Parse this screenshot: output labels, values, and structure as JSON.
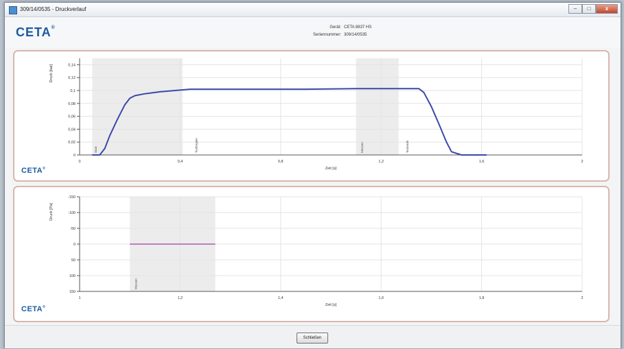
{
  "window": {
    "title": "309/14/0535 - Druckverlauf",
    "buttons": [
      "–",
      "□",
      "x"
    ]
  },
  "header": {
    "logo": "CETA",
    "logo_mark": "®",
    "device_label": "Gerät:",
    "device_value": "CETA 8837 HS",
    "serial_label": "Seriennummer:",
    "serial_value": "309/14/0535"
  },
  "footer": {
    "close_label": "Schließen"
  },
  "chart_data": [
    {
      "type": "line",
      "title": "",
      "ylabel": "Druck [bar]",
      "xlabel": "Zeit [s]",
      "xlim": [
        0,
        2
      ],
      "ylim": [
        0,
        0.15
      ],
      "x_ticks": [
        0,
        0.4,
        0.8,
        1.2,
        1.6,
        2
      ],
      "x_tick_labels": [
        "0",
        "0,4",
        "0,8",
        "1,2",
        "1,6",
        "2"
      ],
      "y_ticks": [
        0,
        0.02,
        0.04,
        0.06,
        0.08,
        0.1,
        0.12,
        0.14
      ],
      "y_tick_labels": [
        "0",
        "0,02",
        "0,04",
        "0,06",
        "0,08",
        "0,1",
        "0,12",
        "0,14"
      ],
      "grid": true,
      "color": "#3a48a8",
      "series": [
        {
          "name": "",
          "x": [
            0.05,
            0.08,
            0.1,
            0.12,
            0.15,
            0.18,
            0.2,
            0.22,
            0.26,
            0.32,
            0.38,
            0.44,
            0.6,
            0.9,
            1.1,
            1.35,
            1.37,
            1.4,
            1.43,
            1.46,
            1.48,
            1.52,
            1.62
          ],
          "y": [
            0,
            0,
            0.01,
            0.03,
            0.055,
            0.078,
            0.088,
            0.092,
            0.095,
            0.098,
            0.1,
            0.102,
            0.102,
            0.102,
            0.103,
            0.103,
            0.097,
            0.075,
            0.048,
            0.02,
            0.005,
            0,
            0
          ]
        }
      ],
      "shaded_regions": [
        [
          0.05,
          0.41
        ],
        [
          1.1,
          1.27
        ]
      ],
      "markers": [
        {
          "x": 0.06,
          "label": "Start"
        },
        {
          "x": 0.46,
          "label": "Testbeginn"
        },
        {
          "x": 1.12,
          "label": "Messen"
        },
        {
          "x": 1.3,
          "label": "Testende"
        }
      ]
    },
    {
      "type": "line",
      "title": "",
      "ylabel": "Druck [Pa]",
      "xlabel": "Zeit [s]",
      "xlim": [
        1,
        2
      ],
      "ylim": [
        150,
        -150
      ],
      "x_ticks": [
        1,
        1.2,
        1.4,
        1.6,
        1.8,
        2
      ],
      "x_tick_labels": [
        "1",
        "1,2",
        "1,4",
        "1,6",
        "1,8",
        "2"
      ],
      "y_ticks": [
        -150,
        -100,
        -50,
        0,
        50,
        100,
        150
      ],
      "y_tick_labels": [
        "-150",
        "-100",
        "-50",
        "0",
        "50",
        "100",
        "150"
      ],
      "grid": true,
      "color": "#c07bbf",
      "series": [
        {
          "name": "",
          "x": [
            1.1,
            1.27
          ],
          "y": [
            0,
            0
          ]
        }
      ],
      "shaded_regions": [
        [
          1.1,
          1.27
        ]
      ],
      "markers": [
        {
          "x": 1.11,
          "label": "Messen"
        }
      ]
    }
  ]
}
